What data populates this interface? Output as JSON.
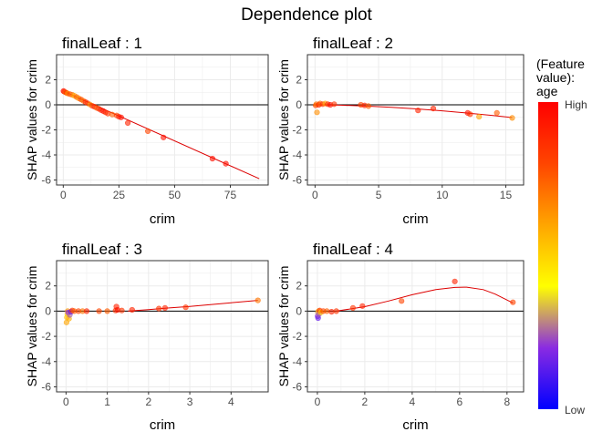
{
  "title": "Dependence plot",
  "legend": {
    "title_lines": [
      "(Feature",
      "value):",
      "age"
    ],
    "high_label": "High",
    "low_label": "Low",
    "colors": [
      "#0000ff",
      "#8a2be2",
      "#ffff00",
      "#ffa500",
      "#ff4500",
      "#ff0000"
    ]
  },
  "colors": {
    "fit_line": "#dd0000",
    "grid": "#ebebeb",
    "panel_border": "#333333",
    "zero_line": "#000000"
  },
  "chart_data": [
    {
      "type": "scatter",
      "title": "finalLeaf : 1",
      "xlabel": "crim",
      "ylabel": "SHAP values for crim",
      "xlim": [
        -3,
        92
      ],
      "ylim": [
        -6.4,
        4
      ],
      "xticks": [
        0,
        25,
        50,
        75
      ],
      "yticks": [
        -6,
        -4,
        -2,
        0,
        2
      ],
      "grid": true,
      "points": [
        {
          "x": 0.1,
          "y": 1.1,
          "c": 0.95
        },
        {
          "x": 0.5,
          "y": 1.05,
          "c": 0.9
        },
        {
          "x": 1,
          "y": 1.0,
          "c": 0.75
        },
        {
          "x": 1.5,
          "y": 0.95,
          "c": 0.85
        },
        {
          "x": 2,
          "y": 0.9,
          "c": 0.65
        },
        {
          "x": 3,
          "y": 0.85,
          "c": 0.8
        },
        {
          "x": 4,
          "y": 0.8,
          "c": 0.7
        },
        {
          "x": 5,
          "y": 0.72,
          "c": 0.6
        },
        {
          "x": 6,
          "y": 0.62,
          "c": 0.75
        },
        {
          "x": 7,
          "y": 0.52,
          "c": 0.65
        },
        {
          "x": 8,
          "y": 0.42,
          "c": 0.8
        },
        {
          "x": 9,
          "y": 0.32,
          "c": 0.7
        },
        {
          "x": 10,
          "y": 0.22,
          "c": 0.9
        },
        {
          "x": 11,
          "y": 0.12,
          "c": 0.85
        },
        {
          "x": 12,
          "y": 0.02,
          "c": 0.65
        },
        {
          "x": 13,
          "y": -0.08,
          "c": 0.8
        },
        {
          "x": 14,
          "y": -0.15,
          "c": 0.9
        },
        {
          "x": 15,
          "y": -0.25,
          "c": 0.75
        },
        {
          "x": 16,
          "y": -0.32,
          "c": 0.85
        },
        {
          "x": 17,
          "y": -0.42,
          "c": 0.9
        },
        {
          "x": 18,
          "y": -0.5,
          "c": 0.95
        },
        {
          "x": 19,
          "y": -0.6,
          "c": 0.9
        },
        {
          "x": 20,
          "y": -0.7,
          "c": 0.85
        },
        {
          "x": 22,
          "y": -0.78,
          "c": 0.75
        },
        {
          "x": 24,
          "y": -0.85,
          "c": 0.8
        },
        {
          "x": 25,
          "y": -0.95,
          "c": 0.9
        },
        {
          "x": 26,
          "y": -1.0,
          "c": 0.95
        },
        {
          "x": 29,
          "y": -1.45,
          "c": 0.9
        },
        {
          "x": 38,
          "y": -2.1,
          "c": 0.8
        },
        {
          "x": 45,
          "y": -2.6,
          "c": 0.95
        },
        {
          "x": 67,
          "y": -4.3,
          "c": 0.95
        },
        {
          "x": 73,
          "y": -4.7,
          "c": 0.95
        }
      ],
      "fit": [
        [
          0,
          1.1
        ],
        [
          88,
          -5.9
        ]
      ]
    },
    {
      "type": "scatter",
      "title": "finalLeaf : 2",
      "xlabel": "crim",
      "ylabel": "SHAP values for crim",
      "xlim": [
        -0.6,
        16.4
      ],
      "ylim": [
        -6.4,
        4
      ],
      "xticks": [
        0,
        5,
        10,
        15
      ],
      "yticks": [
        -6,
        -4,
        -2,
        0,
        2
      ],
      "grid": true,
      "points": [
        {
          "x": 0.05,
          "y": -0.05,
          "c": 0.8
        },
        {
          "x": 0.1,
          "y": 0.05,
          "c": 0.7
        },
        {
          "x": 0.15,
          "y": -0.6,
          "c": 0.65
        },
        {
          "x": 0.3,
          "y": 0.0,
          "c": 0.9
        },
        {
          "x": 0.4,
          "y": 0.1,
          "c": 0.75
        },
        {
          "x": 0.6,
          "y": 0.05,
          "c": 0.85
        },
        {
          "x": 0.8,
          "y": 0.1,
          "c": 0.6
        },
        {
          "x": 1.0,
          "y": 0.05,
          "c": 0.9
        },
        {
          "x": 1.2,
          "y": 0.0,
          "c": 0.95
        },
        {
          "x": 1.5,
          "y": 0.05,
          "c": 0.85
        },
        {
          "x": 3.6,
          "y": 0.0,
          "c": 0.8
        },
        {
          "x": 3.9,
          "y": -0.05,
          "c": 0.9
        },
        {
          "x": 4.2,
          "y": -0.1,
          "c": 0.75
        },
        {
          "x": 8.1,
          "y": -0.45,
          "c": 0.9
        },
        {
          "x": 9.3,
          "y": -0.3,
          "c": 0.9
        },
        {
          "x": 12.0,
          "y": -0.65,
          "c": 0.95
        },
        {
          "x": 12.2,
          "y": -0.75,
          "c": 0.85
        },
        {
          "x": 12.9,
          "y": -0.95,
          "c": 0.6
        },
        {
          "x": 14.3,
          "y": -0.65,
          "c": 0.75
        },
        {
          "x": 15.5,
          "y": -1.05,
          "c": 0.65
        }
      ],
      "fit": [
        [
          0,
          0.0
        ],
        [
          2,
          -0.03
        ],
        [
          4,
          -0.1
        ],
        [
          6,
          -0.2
        ],
        [
          8,
          -0.33
        ],
        [
          10,
          -0.48
        ],
        [
          12,
          -0.66
        ],
        [
          14,
          -0.86
        ],
        [
          15.5,
          -1.02
        ]
      ]
    },
    {
      "type": "scatter",
      "title": "finalLeaf : 3",
      "xlabel": "crim",
      "ylabel": "SHAP values for crim",
      "xlim": [
        -0.23,
        4.9
      ],
      "ylim": [
        -6.4,
        4
      ],
      "xticks": [
        0,
        1,
        2,
        3,
        4
      ],
      "yticks": [
        -6,
        -4,
        -2,
        0,
        2
      ],
      "grid": true,
      "points": [
        {
          "x": 0.01,
          "y": -0.9,
          "c": 0.6
        },
        {
          "x": 0.02,
          "y": -0.5,
          "c": 0.55
        },
        {
          "x": 0.03,
          "y": -0.25,
          "c": 0.5
        },
        {
          "x": 0.04,
          "y": 0.0,
          "c": 0.62
        },
        {
          "x": 0.05,
          "y": -0.1,
          "c": 0.2
        },
        {
          "x": 0.07,
          "y": -0.6,
          "c": 0.58
        },
        {
          "x": 0.09,
          "y": -0.3,
          "c": 0.25
        },
        {
          "x": 0.12,
          "y": -0.05,
          "c": 0.15
        },
        {
          "x": 0.15,
          "y": 0.05,
          "c": 0.85
        },
        {
          "x": 0.2,
          "y": 0.0,
          "c": 0.75
        },
        {
          "x": 0.3,
          "y": 0.0,
          "c": 0.8
        },
        {
          "x": 0.4,
          "y": 0.0,
          "c": 0.7
        },
        {
          "x": 0.5,
          "y": 0.0,
          "c": 0.9
        },
        {
          "x": 0.8,
          "y": 0.0,
          "c": 0.8
        },
        {
          "x": 1.0,
          "y": 0.0,
          "c": 0.75
        },
        {
          "x": 1.2,
          "y": 0.05,
          "c": 0.85
        },
        {
          "x": 1.22,
          "y": 0.35,
          "c": 0.9
        },
        {
          "x": 1.25,
          "y": 0.1,
          "c": 0.95
        },
        {
          "x": 1.35,
          "y": 0.05,
          "c": 0.85
        },
        {
          "x": 1.6,
          "y": 0.1,
          "c": 0.9
        },
        {
          "x": 2.25,
          "y": 0.2,
          "c": 0.85
        },
        {
          "x": 2.4,
          "y": 0.25,
          "c": 0.9
        },
        {
          "x": 2.9,
          "y": 0.3,
          "c": 0.85
        },
        {
          "x": 4.65,
          "y": 0.85,
          "c": 0.7
        }
      ],
      "fit": [
        [
          1.5,
          0.0
        ],
        [
          2,
          0.12
        ],
        [
          2.5,
          0.25
        ],
        [
          3,
          0.37
        ],
        [
          3.5,
          0.52
        ],
        [
          4,
          0.66
        ],
        [
          4.65,
          0.85
        ]
      ]
    },
    {
      "type": "scatter",
      "title": "finalLeaf : 4",
      "xlabel": "crim",
      "ylabel": "SHAP values for crim",
      "xlim": [
        -0.42,
        8.7
      ],
      "ylim": [
        -6.4,
        4
      ],
      "xticks": [
        0,
        2,
        4,
        6,
        8
      ],
      "yticks": [
        -6,
        -4,
        -2,
        0,
        2
      ],
      "grid": true,
      "points": [
        {
          "x": 0.01,
          "y": -0.4,
          "c": 0.2
        },
        {
          "x": 0.02,
          "y": -0.1,
          "c": 0.3
        },
        {
          "x": 0.03,
          "y": -0.55,
          "c": 0.15
        },
        {
          "x": 0.05,
          "y": 0.0,
          "c": 0.6
        },
        {
          "x": 0.07,
          "y": -0.25,
          "c": 0.25
        },
        {
          "x": 0.1,
          "y": 0.05,
          "c": 0.85
        },
        {
          "x": 0.15,
          "y": -0.1,
          "c": 0.5
        },
        {
          "x": 0.25,
          "y": 0.0,
          "c": 0.8
        },
        {
          "x": 0.4,
          "y": 0.0,
          "c": 0.75
        },
        {
          "x": 0.6,
          "y": -0.05,
          "c": 0.9
        },
        {
          "x": 0.8,
          "y": 0.0,
          "c": 0.85
        },
        {
          "x": 1.5,
          "y": 0.25,
          "c": 0.85
        },
        {
          "x": 1.9,
          "y": 0.4,
          "c": 0.9
        },
        {
          "x": 3.55,
          "y": 0.8,
          "c": 0.8
        },
        {
          "x": 5.8,
          "y": 2.35,
          "c": 0.9
        },
        {
          "x": 8.25,
          "y": 0.7,
          "c": 0.8
        }
      ],
      "fit": [
        [
          0.8,
          0.0
        ],
        [
          2,
          0.35
        ],
        [
          3,
          0.8
        ],
        [
          4,
          1.3
        ],
        [
          5,
          1.7
        ],
        [
          5.8,
          1.88
        ],
        [
          6.3,
          1.9
        ],
        [
          7,
          1.7
        ],
        [
          7.5,
          1.35
        ],
        [
          8.25,
          0.65
        ]
      ]
    }
  ]
}
